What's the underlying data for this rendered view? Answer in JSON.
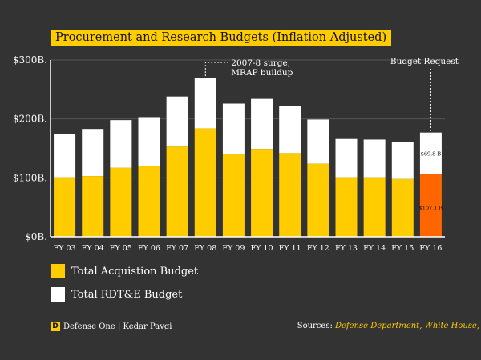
{
  "chart_data": {
    "type": "bar",
    "title": "Procurement and Research Budgets (Inflation Adjusted)",
    "categories": [
      "FY 03",
      "FY 04",
      "FY 05",
      "FY 06",
      "FY 07",
      "FY 08",
      "FY 09",
      "FY 10",
      "FY 11",
      "FY 12",
      "FY 13",
      "FY 14",
      "FY 15",
      "FY 16"
    ],
    "series": [
      {
        "name": "Total Acquistion Budget",
        "color": "#ffcc00",
        "values": [
          101,
          103,
          117,
          120,
          153,
          184,
          141,
          149,
          142,
          124,
          101,
          101,
          98,
          107.1
        ]
      },
      {
        "name": "Total RDT&E Budget",
        "color": "#ffffff",
        "values": [
          73,
          80,
          81,
          83,
          85,
          86,
          85,
          85,
          80,
          75,
          65,
          64,
          63,
          69.8
        ]
      }
    ],
    "highlight": {
      "index": 13,
      "acquisition_color": "#ff6600",
      "rdte_color": "#ffffff"
    },
    "stacked": true,
    "ylim": [
      0,
      300
    ],
    "yticks": [
      0,
      100,
      200,
      300
    ],
    "ytick_labels": [
      "$0B.",
      "$100B.",
      "$200B.",
      "$300B."
    ],
    "annotations": {
      "surge": {
        "category_index": 5,
        "lines": [
          "2007-8 surge,",
          "MRAP buildup"
        ]
      },
      "request": {
        "category_index": 13,
        "text": "Budget Request"
      },
      "value_labels": {
        "rdte": "$69.8 B",
        "acquisition": "$107.1 B"
      }
    }
  },
  "footer": {
    "brand_logo": "D",
    "brand_text": "Defense One | Kedar Pavgi",
    "sources_prefix": "Sources: ",
    "sources_links": "Defense Department, White House,"
  }
}
